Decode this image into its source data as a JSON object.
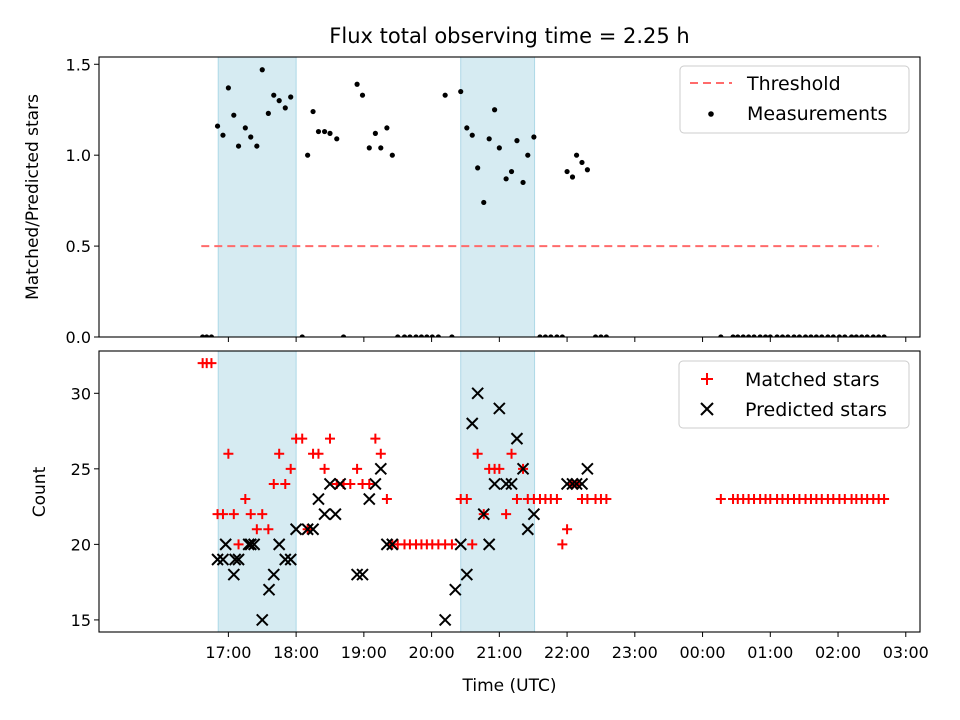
{
  "chart_data": [
    {
      "type": "scatter",
      "panel": "top",
      "title": "Flux total observing time = 2.25 h",
      "xlabel": "",
      "ylabel": "Matched/Predicted stars",
      "x_unit": "hours since 16:00 UTC",
      "xlim": [
        -0.91,
        11.21
      ],
      "ylim": [
        0.0,
        1.54
      ],
      "yticks": [
        0.0,
        0.5,
        1.0,
        1.5
      ],
      "ytick_labels": [
        "0.0",
        "0.5",
        "1.0",
        "1.5"
      ],
      "shaded_intervals": [
        [
          0.85,
          2.0
        ],
        [
          4.43,
          5.52
        ]
      ],
      "legend": {
        "position": "top-right",
        "entries": [
          "Threshold",
          "Measurements"
        ]
      },
      "series": [
        {
          "name": "Threshold",
          "kind": "line",
          "style": "dashed",
          "color": "#ff6b6b",
          "x": [
            0.6,
            10.6
          ],
          "y": [
            0.5,
            0.5
          ]
        },
        {
          "name": "Measurements",
          "kind": "scatter",
          "marker": "dot",
          "color": "#000000",
          "x": [
            0.62,
            0.68,
            0.75,
            0.84,
            0.92,
            1.0,
            1.08,
            1.15,
            1.25,
            1.33,
            1.42,
            1.5,
            1.59,
            1.67,
            1.75,
            1.84,
            1.92,
            2.09,
            2.17,
            2.25,
            2.33,
            2.42,
            2.5,
            2.6,
            2.7,
            2.9,
            2.98,
            3.08,
            3.17,
            3.25,
            3.34,
            3.42,
            3.5,
            3.6,
            3.68,
            3.77,
            3.85,
            3.93,
            4.01,
            4.1,
            4.2,
            4.3,
            4.43,
            4.52,
            4.6,
            4.68,
            4.77,
            4.85,
            4.93,
            5.0,
            5.1,
            5.18,
            5.26,
            5.35,
            5.42,
            5.51,
            5.6,
            5.68,
            5.76,
            5.85,
            5.93,
            6.0,
            6.08,
            6.14,
            6.22,
            6.3,
            6.42,
            6.5,
            6.58,
            8.27,
            8.45,
            8.52,
            8.6,
            8.68,
            8.76,
            8.85,
            8.93,
            9.0,
            9.1,
            9.18,
            9.26,
            9.35,
            9.43,
            9.52,
            9.6,
            9.68,
            9.76,
            9.85,
            9.93,
            10.02,
            10.1,
            10.2,
            10.27,
            10.35,
            10.43,
            10.52,
            10.6,
            10.68
          ],
          "y": [
            0.0,
            0.0,
            0.0,
            1.16,
            1.11,
            1.37,
            1.22,
            1.05,
            1.15,
            1.1,
            1.05,
            1.47,
            1.23,
            1.33,
            1.3,
            1.26,
            1.32,
            0.0,
            1.0,
            1.24,
            1.13,
            1.13,
            1.12,
            1.09,
            0.0,
            1.39,
            1.33,
            1.04,
            1.12,
            1.04,
            1.15,
            1.0,
            0.0,
            0.0,
            0.0,
            0.0,
            0.0,
            0.0,
            0.0,
            0.0,
            1.33,
            0.0,
            1.35,
            1.15,
            1.11,
            0.93,
            0.74,
            1.09,
            1.25,
            1.04,
            0.87,
            0.91,
            1.08,
            0.85,
            1.0,
            1.1,
            0.0,
            0.0,
            0.0,
            0.0,
            0.0,
            0.91,
            0.88,
            1.0,
            0.96,
            0.92,
            0.0,
            0.0,
            0.0,
            0.0,
            0.0,
            0.0,
            0.0,
            0.0,
            0.0,
            0.0,
            0.0,
            0.0,
            0.0,
            0.0,
            0.0,
            0.0,
            0.0,
            0.0,
            0.0,
            0.0,
            0.0,
            0.0,
            0.0,
            0.0,
            0.0,
            0.0,
            0.0,
            0.0,
            0.0,
            0.0,
            0.0,
            0.0
          ]
        }
      ]
    },
    {
      "type": "scatter",
      "panel": "bottom",
      "title": "",
      "xlabel": "Time (UTC)",
      "ylabel": "Count",
      "x_unit": "hours since 16:00 UTC",
      "xlim": [
        -0.91,
        11.21
      ],
      "ylim": [
        14.2,
        32.8
      ],
      "yticks": [
        15,
        20,
        25,
        30
      ],
      "ytick_labels": [
        "15",
        "20",
        "25",
        "30"
      ],
      "xticks": [
        1,
        2,
        3,
        4,
        5,
        6,
        7,
        8,
        9,
        10,
        11
      ],
      "xtick_labels": [
        "17:00",
        "18:00",
        "19:00",
        "20:00",
        "21:00",
        "22:00",
        "23:00",
        "00:00",
        "01:00",
        "02:00",
        "03:00"
      ],
      "shaded_intervals": [
        [
          0.85,
          2.0
        ],
        [
          4.43,
          5.52
        ]
      ],
      "legend": {
        "position": "top-right",
        "entries": [
          "Matched stars",
          "Predicted stars"
        ]
      },
      "series": [
        {
          "name": "Matched stars",
          "kind": "scatter",
          "marker": "plus",
          "color": "#ff0000",
          "x": [
            0.62,
            0.68,
            0.75,
            0.84,
            0.92,
            1.0,
            1.08,
            1.15,
            1.25,
            1.33,
            1.42,
            1.5,
            1.59,
            1.67,
            1.75,
            1.84,
            1.92,
            2.0,
            2.09,
            2.17,
            2.25,
            2.33,
            2.42,
            2.5,
            2.6,
            2.7,
            2.8,
            2.9,
            2.98,
            3.08,
            3.17,
            3.25,
            3.34,
            3.42,
            3.5,
            3.6,
            3.68,
            3.77,
            3.85,
            3.93,
            4.01,
            4.1,
            4.2,
            4.3,
            4.43,
            4.52,
            4.6,
            4.68,
            4.77,
            4.85,
            4.93,
            5.0,
            5.1,
            5.18,
            5.26,
            5.35,
            5.42,
            5.51,
            5.6,
            5.68,
            5.76,
            5.85,
            5.93,
            6.0,
            6.08,
            6.14,
            6.22,
            6.3,
            6.42,
            6.5,
            6.58,
            8.27,
            8.45,
            8.52,
            8.6,
            8.68,
            8.76,
            8.85,
            8.93,
            9.0,
            9.1,
            9.18,
            9.26,
            9.35,
            9.43,
            9.52,
            9.6,
            9.68,
            9.76,
            9.85,
            9.93,
            10.02,
            10.1,
            10.2,
            10.27,
            10.35,
            10.43,
            10.52,
            10.6,
            10.68
          ],
          "y": [
            32,
            32,
            32,
            22,
            22,
            26,
            22,
            20,
            23,
            22,
            21,
            22,
            21,
            24,
            26,
            24,
            25,
            27,
            27,
            21,
            26,
            26,
            25,
            27,
            24,
            24,
            24,
            25,
            24,
            24,
            27,
            26,
            23,
            20,
            20,
            20,
            20,
            20,
            20,
            20,
            20,
            20,
            20,
            20,
            23,
            23,
            20,
            26,
            22,
            25,
            25,
            25,
            22,
            26,
            23,
            25,
            23,
            23,
            23,
            23,
            23,
            23,
            20,
            21,
            24,
            24,
            23,
            23,
            23,
            23,
            23,
            23,
            23,
            23,
            23,
            23,
            23,
            23,
            23,
            23,
            23,
            23,
            23,
            23,
            23,
            23,
            23,
            23,
            23,
            23,
            23,
            23,
            23,
            23,
            23,
            23,
            23,
            23,
            23,
            23
          ]
        },
        {
          "name": "Predicted stars",
          "kind": "scatter",
          "marker": "x",
          "color": "#000000",
          "x": [
            0.84,
            0.92,
            0.96,
            1.08,
            1.1,
            1.15,
            1.3,
            1.33,
            1.38,
            1.5,
            1.6,
            1.67,
            1.75,
            1.84,
            1.92,
            2.0,
            2.17,
            2.25,
            2.33,
            2.42,
            2.5,
            2.58,
            2.65,
            2.9,
            2.98,
            3.08,
            3.17,
            3.25,
            3.34,
            3.42,
            4.2,
            4.35,
            4.43,
            4.52,
            4.6,
            4.68,
            4.77,
            4.85,
            4.93,
            5.0,
            5.1,
            5.18,
            5.26,
            5.35,
            5.42,
            5.51,
            6.0,
            6.08,
            6.14,
            6.22,
            6.3
          ],
          "y": [
            19,
            19,
            20,
            18,
            19,
            19,
            20,
            20,
            20,
            15,
            17,
            18,
            20,
            19,
            19,
            21,
            21,
            21,
            23,
            22,
            24,
            22,
            24,
            18,
            18,
            23,
            24,
            25,
            20,
            20,
            15,
            17,
            20,
            18,
            28,
            30,
            22,
            20,
            24,
            29,
            24,
            24,
            27,
            25,
            21,
            22,
            24,
            24,
            24,
            24,
            25
          ]
        }
      ]
    }
  ]
}
